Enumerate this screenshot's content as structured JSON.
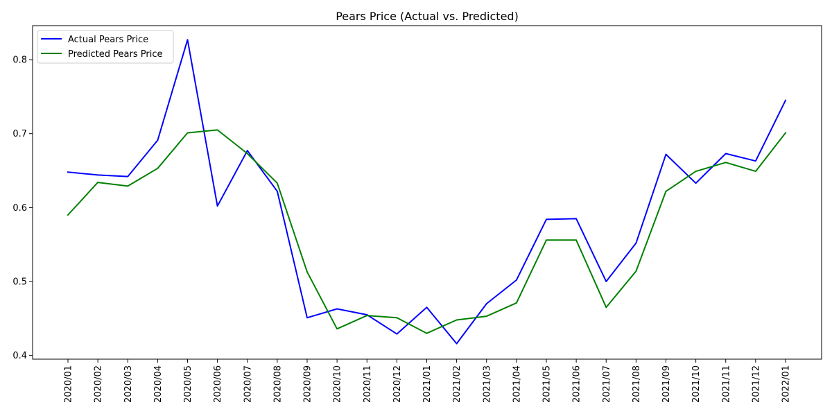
{
  "chart_data": {
    "type": "line",
    "title": "Pears Price (Actual vs. Predicted)",
    "xlabel": "",
    "ylabel": "",
    "categories": [
      "2020/01",
      "2020/02",
      "2020/03",
      "2020/04",
      "2020/05",
      "2020/06",
      "2020/07",
      "2020/08",
      "2020/09",
      "2020/10",
      "2020/11",
      "2020/12",
      "2021/01",
      "2021/02",
      "2021/03",
      "2021/04",
      "2021/05",
      "2021/06",
      "2021/07",
      "2021/08",
      "2021/09",
      "2021/10",
      "2021/11",
      "2021/12",
      "2022/01"
    ],
    "series": [
      {
        "name": "Actual Pears Price",
        "color": "#0000ff",
        "values": [
          0.648,
          0.644,
          0.642,
          0.691,
          0.827,
          0.602,
          0.677,
          0.622,
          0.451,
          0.463,
          0.455,
          0.429,
          0.465,
          0.416,
          0.47,
          0.502,
          0.584,
          0.585,
          0.5,
          0.552,
          0.672,
          0.633,
          0.673,
          0.663,
          0.745
        ]
      },
      {
        "name": "Predicted Pears Price",
        "color": "#008000",
        "values": [
          0.59,
          0.634,
          0.629,
          0.653,
          0.701,
          0.705,
          0.673,
          0.633,
          0.513,
          0.436,
          0.454,
          0.451,
          0.43,
          0.448,
          0.453,
          0.471,
          0.556,
          0.556,
          0.465,
          0.514,
          0.622,
          0.649,
          0.661,
          0.649,
          0.701
        ]
      }
    ],
    "yticks": [
      0.4,
      0.5,
      0.6,
      0.7,
      0.8
    ],
    "ylim": [
      0.395,
      0.846
    ],
    "grid": false,
    "legend_position": "top-left"
  }
}
